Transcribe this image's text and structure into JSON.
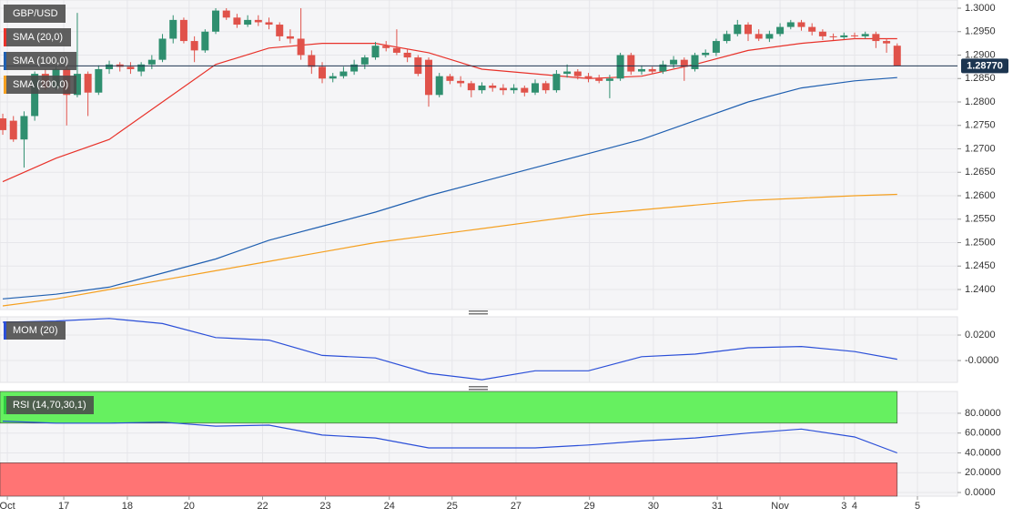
{
  "chart_data": [
    {
      "type": "candlestick",
      "title": "GBP/USD",
      "up_color": "#2f8f6f",
      "down_color": "#e0524a",
      "candles": [
        [
          1.2765,
          1.2775,
          1.273,
          1.274
        ],
        [
          1.276,
          1.277,
          1.2715,
          1.272
        ],
        [
          1.272,
          1.278,
          1.266,
          1.277
        ],
        [
          1.277,
          1.2865,
          1.276,
          1.286
        ],
        [
          1.286,
          1.287,
          1.2825,
          1.283
        ],
        [
          1.283,
          1.2875,
          1.2825,
          1.287
        ],
        [
          1.287,
          1.288,
          1.275,
          1.2815
        ],
        [
          1.2815,
          1.299,
          1.281,
          1.286
        ],
        [
          1.286,
          1.2865,
          1.277,
          1.282
        ],
        [
          1.282,
          1.2878,
          1.2815,
          1.287
        ],
        [
          1.287,
          1.2888,
          1.286,
          1.288
        ],
        [
          1.288,
          1.2885,
          1.2865,
          1.2875
        ],
        [
          1.2875,
          1.2885,
          1.286,
          1.287
        ],
        [
          1.2865,
          1.2885,
          1.2855,
          1.288
        ],
        [
          1.288,
          1.29,
          1.287,
          1.289
        ],
        [
          1.289,
          1.2945,
          1.2885,
          1.2935
        ],
        [
          1.2935,
          1.2985,
          1.2925,
          1.2975
        ],
        [
          1.2975,
          1.298,
          1.2925,
          1.293
        ],
        [
          1.293,
          1.294,
          1.2885,
          1.291
        ],
        [
          1.291,
          1.2955,
          1.2905,
          1.295
        ],
        [
          1.295,
          1.3,
          1.2945,
          1.2995
        ],
        [
          1.2995,
          1.3,
          1.2975,
          1.298
        ],
        [
          1.298,
          1.2988,
          1.2958,
          1.2965
        ],
        [
          1.2965,
          1.2985,
          1.296,
          1.2975
        ],
        [
          1.2975,
          1.2985,
          1.2962,
          1.297
        ],
        [
          1.297,
          1.298,
          1.2955,
          1.2965
        ],
        [
          1.2965,
          1.297,
          1.293,
          1.294
        ],
        [
          1.294,
          1.2955,
          1.2925,
          1.2935
        ],
        [
          1.2935,
          1.3,
          1.289,
          1.29
        ],
        [
          1.29,
          1.291,
          1.286,
          1.2875
        ],
        [
          1.2875,
          1.2885,
          1.284,
          1.285
        ],
        [
          1.285,
          1.2862,
          1.2842,
          1.2855
        ],
        [
          1.2855,
          1.2875,
          1.285,
          1.2865
        ],
        [
          1.2865,
          1.289,
          1.2858,
          1.288
        ],
        [
          1.288,
          1.29,
          1.287,
          1.2895
        ],
        [
          1.2895,
          1.2928,
          1.289,
          1.292
        ],
        [
          1.292,
          1.293,
          1.2908,
          1.2915
        ],
        [
          1.2915,
          1.2955,
          1.29,
          1.2905
        ],
        [
          1.2905,
          1.2912,
          1.2885,
          1.2895
        ],
        [
          1.2895,
          1.29,
          1.2855,
          1.286
        ],
        [
          1.289,
          1.2895,
          1.279,
          1.2815
        ],
        [
          1.2815,
          1.2862,
          1.281,
          1.2855
        ],
        [
          1.2855,
          1.286,
          1.2838,
          1.2845
        ],
        [
          1.2845,
          1.2855,
          1.2832,
          1.284
        ],
        [
          1.284,
          1.2845,
          1.281,
          1.2825
        ],
        [
          1.2825,
          1.2842,
          1.2818,
          1.2835
        ],
        [
          1.2835,
          1.284,
          1.2822,
          1.283
        ],
        [
          1.283,
          1.2838,
          1.2815,
          1.2825
        ],
        [
          1.2825,
          1.2838,
          1.2818,
          1.283
        ],
        [
          1.283,
          1.2835,
          1.2812,
          1.282
        ],
        [
          1.282,
          1.2848,
          1.2815,
          1.284
        ],
        [
          1.284,
          1.2845,
          1.2818,
          1.2825
        ],
        [
          1.2825,
          1.2868,
          1.282,
          1.286
        ],
        [
          1.286,
          1.288,
          1.2852,
          1.2865
        ],
        [
          1.2865,
          1.287,
          1.2848,
          1.2855
        ],
        [
          1.2855,
          1.2862,
          1.2842,
          1.285
        ],
        [
          1.285,
          1.2858,
          1.284,
          1.2845
        ],
        [
          1.2845,
          1.2858,
          1.2808,
          1.285
        ],
        [
          1.285,
          1.2905,
          1.2845,
          1.29
        ],
        [
          1.29,
          1.2905,
          1.2858,
          1.2865
        ],
        [
          1.2865,
          1.2878,
          1.2858,
          1.287
        ],
        [
          1.287,
          1.2875,
          1.286,
          1.2865
        ],
        [
          1.2865,
          1.2888,
          1.286,
          1.288
        ],
        [
          1.288,
          1.2898,
          1.2872,
          1.289
        ],
        [
          1.289,
          1.2895,
          1.2845,
          1.2875
        ],
        [
          1.287,
          1.2905,
          1.2865,
          1.29
        ],
        [
          1.29,
          1.2912,
          1.2895,
          1.2905
        ],
        [
          1.2905,
          1.2935,
          1.2898,
          1.293
        ],
        [
          1.293,
          1.2952,
          1.2925,
          1.2945
        ],
        [
          1.2945,
          1.2975,
          1.294,
          1.2965
        ],
        [
          1.2965,
          1.297,
          1.293,
          1.2945
        ],
        [
          1.2945,
          1.2955,
          1.293,
          1.2935
        ],
        [
          1.2935,
          1.2952,
          1.2928,
          1.2945
        ],
        [
          1.2945,
          1.2968,
          1.294,
          1.296
        ],
        [
          1.296,
          1.2975,
          1.2955,
          1.297
        ],
        [
          1.297,
          1.2975,
          1.2952,
          1.296
        ],
        [
          1.296,
          1.2968,
          1.2942,
          1.295
        ],
        [
          1.295,
          1.2955,
          1.2932,
          1.294
        ],
        [
          1.294,
          1.2946,
          1.2932,
          1.2938
        ],
        [
          1.2938,
          1.2948,
          1.2934,
          1.2942
        ],
        [
          1.2942,
          1.2948,
          1.2934,
          1.294
        ],
        [
          1.294,
          1.295,
          1.2935,
          1.2945
        ],
        [
          1.2945,
          1.295,
          1.2915,
          1.293
        ],
        [
          1.293,
          1.2935,
          1.2905,
          1.2925
        ],
        [
          1.292,
          1.2925,
          1.2877,
          1.2877
        ]
      ],
      "series": [
        {
          "name": "SMA (20,0)",
          "color": "#e8322a",
          "x": [
            0,
            5,
            10,
            15,
            20,
            25,
            30,
            35,
            40,
            45,
            50,
            55,
            60,
            65,
            70,
            75,
            80,
            84
          ],
          "values": [
            1.263,
            1.268,
            1.272,
            1.28,
            1.288,
            1.2915,
            1.2925,
            1.2925,
            1.2905,
            1.287,
            1.286,
            1.285,
            1.2855,
            1.288,
            1.291,
            1.2925,
            1.2935,
            1.2935
          ]
        },
        {
          "name": "SMA (100,0)",
          "color": "#1f5fb0",
          "x": [
            0,
            5,
            10,
            15,
            20,
            25,
            30,
            35,
            40,
            45,
            50,
            55,
            60,
            65,
            70,
            75,
            80,
            84
          ],
          "values": [
            1.238,
            1.239,
            1.2405,
            1.2435,
            1.2465,
            1.2505,
            1.2535,
            1.2565,
            1.26,
            1.263,
            1.266,
            1.269,
            1.272,
            1.276,
            1.28,
            1.283,
            1.2845,
            1.2852
          ]
        },
        {
          "name": "SMA (200,0)",
          "color": "#f5a020",
          "x": [
            0,
            5,
            10,
            15,
            20,
            25,
            30,
            35,
            40,
            45,
            50,
            55,
            60,
            65,
            70,
            75,
            80,
            84
          ],
          "values": [
            1.2365,
            1.238,
            1.24,
            1.242,
            1.244,
            1.246,
            1.248,
            1.25,
            1.2515,
            1.253,
            1.2545,
            1.256,
            1.257,
            1.258,
            1.259,
            1.2595,
            1.26,
            1.2603
          ]
        }
      ],
      "current_price": 1.2877,
      "current_price_label": "1.28770",
      "price_line_color": "#1c3550",
      "ylim": [
        1.23573,
        1.30175
      ],
      "xlim": [
        -0.26,
        89.66
      ],
      "grid": true,
      "yticks": [
        {
          "value": 1.24,
          "label": "1.2400"
        },
        {
          "value": 1.245,
          "label": "1.2450"
        },
        {
          "value": 1.25,
          "label": "1.2500"
        },
        {
          "value": 1.255,
          "label": "1.2550"
        },
        {
          "value": 1.26,
          "label": "1.2600"
        },
        {
          "value": 1.265,
          "label": "1.2650"
        },
        {
          "value": 1.27,
          "label": "1.2700"
        },
        {
          "value": 1.275,
          "label": "1.2750"
        },
        {
          "value": 1.28,
          "label": "1.2800"
        },
        {
          "value": 1.285,
          "label": "1.2850"
        },
        {
          "value": 1.29,
          "label": "1.2900"
        },
        {
          "value": 1.295,
          "label": "1.2950"
        },
        {
          "value": 1.3,
          "label": "1.3000"
        }
      ]
    },
    {
      "type": "line",
      "series": [
        {
          "name": "MOM (20)",
          "color": "#2b4fd8",
          "x": [
            0,
            5,
            10,
            15,
            20,
            25,
            30,
            35,
            40,
            45,
            50,
            55,
            60,
            65,
            70,
            75,
            80,
            84
          ],
          "values": [
            0.03,
            0.031,
            0.033,
            0.029,
            0.018,
            0.016,
            0.004,
            0.002,
            -0.01,
            -0.015,
            -0.008,
            -0.008,
            0.003,
            0.005,
            0.01,
            0.011,
            0.007,
            0.001
          ]
        }
      ],
      "ylim": [
        -0.0171,
        0.0343
      ],
      "xlim": [
        -0.26,
        89.66
      ],
      "grid": true,
      "yticks": [
        {
          "value": 0,
          "label": "-0.0000"
        },
        {
          "value": 0.02,
          "label": "0.0200"
        }
      ]
    },
    {
      "type": "line",
      "series": [
        {
          "name": "RSI (14,70,30,1)",
          "color": "#2b4fd8",
          "band_label_color": "#2ecc40",
          "x": [
            0,
            5,
            10,
            15,
            20,
            25,
            30,
            35,
            40,
            45,
            50,
            55,
            60,
            65,
            70,
            75,
            80,
            84
          ],
          "values": [
            72,
            70,
            70,
            71,
            67,
            68,
            58,
            55,
            45,
            45,
            45,
            48,
            52,
            55,
            60,
            64,
            56,
            40
          ]
        }
      ],
      "overbought": 70,
      "oversold": 30,
      "overbought_color": "#66f060",
      "oversold_color": "#ff7474",
      "ylim": [
        -3.7,
        102
      ],
      "xlim": [
        -0.26,
        89.66
      ],
      "grid": true,
      "yticks": [
        {
          "value": 0,
          "label": "0.0000"
        },
        {
          "value": 20,
          "label": "20.0000"
        },
        {
          "value": 40,
          "label": "40.0000"
        },
        {
          "value": 60,
          "label": "60.0000"
        },
        {
          "value": 80,
          "label": "80.0000"
        }
      ],
      "xticks": [
        {
          "value": 0.43,
          "label": "Oct"
        },
        {
          "value": 5.73,
          "label": "17"
        },
        {
          "value": 11.7,
          "label": "18"
        },
        {
          "value": 17.5,
          "label": "20"
        },
        {
          "value": 24.4,
          "label": "22"
        },
        {
          "value": 30.3,
          "label": "23"
        },
        {
          "value": 36.3,
          "label": "24"
        },
        {
          "value": 42.2,
          "label": "25"
        },
        {
          "value": 48.2,
          "label": "27"
        },
        {
          "value": 55.1,
          "label": "29"
        },
        {
          "value": 61.1,
          "label": "30"
        },
        {
          "value": 67.1,
          "label": "31"
        },
        {
          "value": 73,
          "label": "Nov"
        },
        {
          "value": 79,
          "label": "3"
        },
        {
          "value": 80,
          "label": "4"
        },
        {
          "value": 85.9,
          "label": "5"
        }
      ]
    }
  ]
}
